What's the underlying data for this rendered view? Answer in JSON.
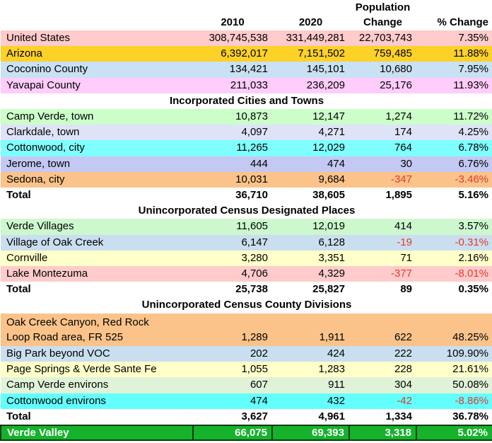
{
  "colors": {
    "negative_text": "#E23B2B",
    "grand_total_bg": "#14B32B",
    "grand_total_border": "#0A3A0A",
    "grand_total_text": "#FFFFFF",
    "default_text": "#000000",
    "page_bg": "#FFFFFF"
  },
  "table": {
    "headers": {
      "col_2010": "2010",
      "col_2020": "2020",
      "population_line1": "Population",
      "population_line2": "Change",
      "pct_change": "% Change"
    },
    "rows": [
      {
        "type": "data",
        "label": "United States",
        "y2010": "308,745,538",
        "y2020": "331,449,281",
        "change": "22,703,743",
        "pct": "7.35%",
        "bg": "#FFCBCB"
      },
      {
        "type": "data",
        "label": "Arizona",
        "y2010": "6,392,017",
        "y2020": "7,151,502",
        "change": "759,485",
        "pct": "11.88%",
        "bg": "#FED127"
      },
      {
        "type": "data",
        "label": "Coconino County",
        "y2010": "134,421",
        "y2020": "145,101",
        "change": "10,680",
        "pct": "7.95%",
        "bg": "#C9E1F2"
      },
      {
        "type": "data",
        "label": "Yavapai County",
        "y2010": "211,033",
        "y2020": "236,209",
        "change": "25,176",
        "pct": "11.93%",
        "bg": "#FFCCFB"
      },
      {
        "type": "section",
        "label": "Incorporated Cities and Towns"
      },
      {
        "type": "data",
        "label": "Camp Verde, town",
        "y2010": "10,873",
        "y2020": "12,147",
        "change": "1,274",
        "pct": "11.72%",
        "bg": "#CBFEC9"
      },
      {
        "type": "data",
        "label": "Clarkdale, town",
        "y2010": "4,097",
        "y2020": "4,271",
        "change": "174",
        "pct": "4.25%",
        "bg": "#DFE3F8"
      },
      {
        "type": "data",
        "label": "Cottonwood, city",
        "y2010": "11,265",
        "y2020": "12,029",
        "change": "764",
        "pct": "6.78%",
        "bg": "#7FFEFE"
      },
      {
        "type": "data",
        "label": "Jerome, town",
        "y2010": "444",
        "y2020": "474",
        "change": "30",
        "pct": "6.76%",
        "bg": "#C4C9F4"
      },
      {
        "type": "data",
        "label": "Sedona, city",
        "y2010": "10,031",
        "y2020": "9,684",
        "change": "-347",
        "pct": "-3.46%",
        "bg": "#FBC389"
      },
      {
        "type": "total",
        "label": "Total",
        "y2010": "36,710",
        "y2020": "38,605",
        "change": "1,895",
        "pct": "5.16%",
        "bg": "#FFFFFF"
      },
      {
        "type": "section",
        "label": "Unincorporated Census Designated Places"
      },
      {
        "type": "data",
        "label": "Verde Villages",
        "y2010": "11,605",
        "y2020": "12,019",
        "change": "414",
        "pct": "3.57%",
        "bg": "#CDF8CE"
      },
      {
        "type": "data",
        "label": "Village of Oak Creek",
        "y2010": "6,147",
        "y2020": "6,128",
        "change": "-19",
        "pct": "-0.31%",
        "bg": "#C9DFEF"
      },
      {
        "type": "data",
        "label": "Cornville",
        "y2010": "3,280",
        "y2020": "3,351",
        "change": "71",
        "pct": "2.16%",
        "bg": "#FFFFC9"
      },
      {
        "type": "data",
        "label": "Lake Montezuma",
        "y2010": "4,706",
        "y2020": "4,329",
        "change": "-377",
        "pct": "-8.01%",
        "bg": "#FFCBCB"
      },
      {
        "type": "total",
        "label": "Total",
        "y2010": "25,738",
        "y2020": "25,827",
        "change": "89",
        "pct": "0.35%",
        "bg": "#FFFFFF"
      },
      {
        "type": "section",
        "label": "Unincorporated Census County Divisions"
      },
      {
        "type": "data",
        "tall": true,
        "label": "Oak Creek Canyon, Red Rock\nLoop Road area, FR 525",
        "y2010": "1,289",
        "y2020": "1,911",
        "change": "622",
        "pct": "48.25%",
        "bg": "#FBC389"
      },
      {
        "type": "data",
        "label": "Big Park beyond VOC",
        "y2010": "202",
        "y2020": "424",
        "change": "222",
        "pct": "109.90%",
        "bg": "#C9DFEF"
      },
      {
        "type": "data",
        "label": "Page Springs & Verde Sante Fe",
        "y2010": "1,055",
        "y2020": "1,283",
        "change": "228",
        "pct": "21.61%",
        "bg": "#FFFFC9"
      },
      {
        "type": "data",
        "label": "Camp Verde environs",
        "y2010": "607",
        "y2020": "911",
        "change": "304",
        "pct": "50.08%",
        "bg": "#E0F3D8"
      },
      {
        "type": "data",
        "label": "Cottonwood environs",
        "y2010": "474",
        "y2020": "432",
        "change": "-42",
        "pct": "-8.86%",
        "bg": "#63FEFE"
      },
      {
        "type": "total",
        "label": "Total",
        "y2010": "3,627",
        "y2020": "4,961",
        "change": "1,334",
        "pct": "36.78%",
        "bg": "#FFFFFF"
      },
      {
        "type": "grand",
        "label": "Verde Valley",
        "y2010": "66,075",
        "y2020": "69,393",
        "change": "3,318",
        "pct": "5.02%",
        "bg": "#14B32B"
      }
    ]
  }
}
